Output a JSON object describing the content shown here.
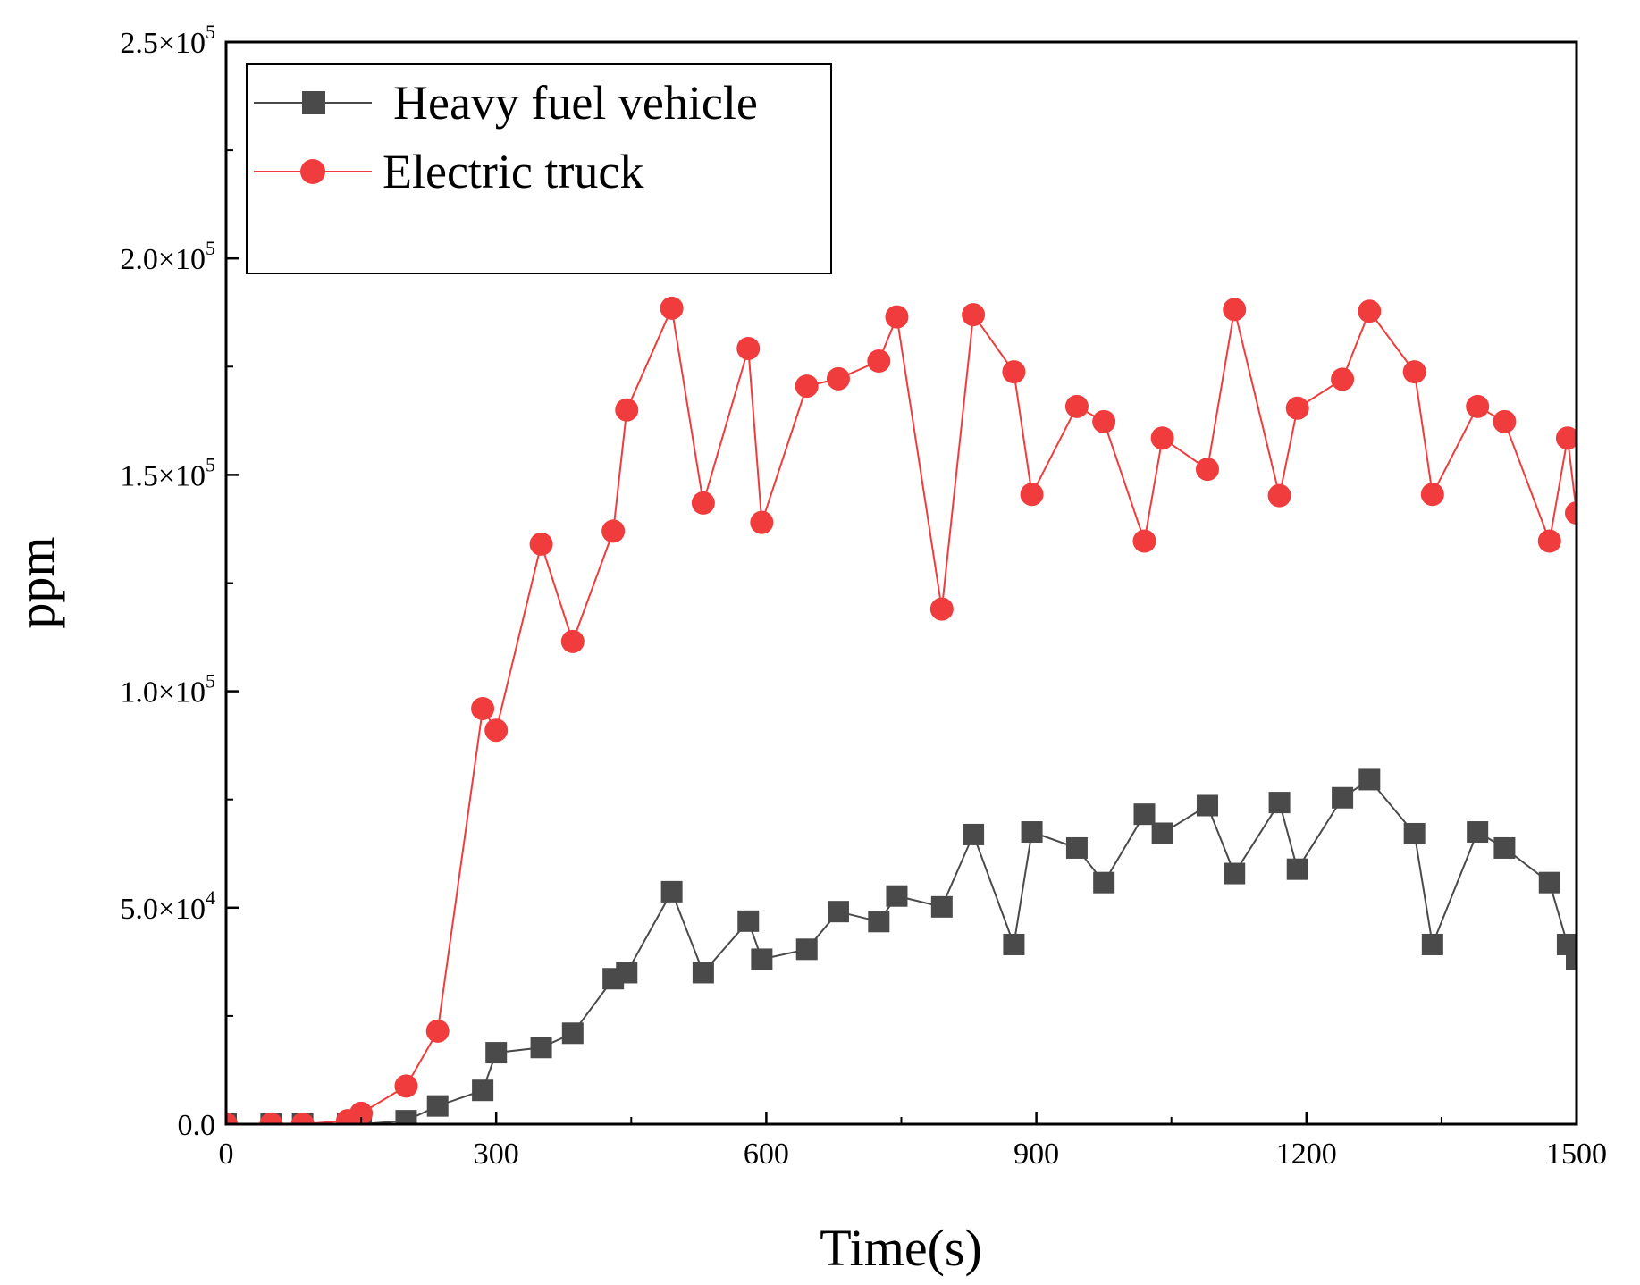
{
  "chart_data": {
    "type": "line",
    "title": "",
    "xlabel": "Time(s)",
    "ylabel": "ppm",
    "xlim": [
      0,
      1500
    ],
    "ylim": [
      0,
      250000
    ],
    "x_ticks": [
      {
        "value": 0,
        "label": "0"
      },
      {
        "value": 300,
        "label": "300"
      },
      {
        "value": 600,
        "label": "600"
      },
      {
        "value": 900,
        "label": "900"
      },
      {
        "value": 1200,
        "label": "1200"
      },
      {
        "value": 1500,
        "label": "1500"
      }
    ],
    "y_ticks": [
      {
        "value": 0,
        "mant": "0.0",
        "exp": ""
      },
      {
        "value": 50000,
        "mant": "5.0×10",
        "exp": "4"
      },
      {
        "value": 100000,
        "mant": "1.0×10",
        "exp": "5"
      },
      {
        "value": 150000,
        "mant": "1.5×10",
        "exp": "5"
      },
      {
        "value": 200000,
        "mant": "2.0×10",
        "exp": "5"
      },
      {
        "value": 250000,
        "mant": "2.5×10",
        "exp": "5"
      }
    ],
    "legend_position": "top-left",
    "series": [
      {
        "name": "Heavy fuel vehicle",
        "color": "#4a4a4a",
        "marker": "square",
        "points": [
          [
            0,
            0
          ],
          [
            50,
            0
          ],
          [
            85,
            0
          ],
          [
            135,
            0
          ],
          [
            150,
            0
          ],
          [
            200,
            800
          ],
          [
            235,
            4200
          ],
          [
            285,
            7800
          ],
          [
            300,
            16500
          ],
          [
            350,
            17700
          ],
          [
            385,
            21000
          ],
          [
            430,
            33600
          ],
          [
            445,
            35000
          ],
          [
            495,
            53700
          ],
          [
            530,
            35000
          ],
          [
            580,
            46900
          ],
          [
            595,
            38100
          ],
          [
            645,
            40400
          ],
          [
            680,
            49100
          ],
          [
            725,
            46800
          ],
          [
            745,
            52700
          ],
          [
            795,
            50200
          ],
          [
            830,
            66900
          ],
          [
            875,
            41500
          ],
          [
            895,
            67500
          ],
          [
            945,
            63800
          ],
          [
            975,
            55800
          ],
          [
            1020,
            71600
          ],
          [
            1040,
            67200
          ],
          [
            1090,
            73600
          ],
          [
            1120,
            57900
          ],
          [
            1170,
            74300
          ],
          [
            1190,
            58900
          ],
          [
            1240,
            75400
          ],
          [
            1270,
            79600
          ],
          [
            1320,
            67100
          ],
          [
            1340,
            41500
          ],
          [
            1390,
            67500
          ],
          [
            1420,
            63800
          ],
          [
            1470,
            55800
          ],
          [
            1490,
            41500
          ],
          [
            1500,
            38100
          ]
        ]
      },
      {
        "name": "Electric truck",
        "color": "#f03c3c",
        "marker": "circle",
        "points": [
          [
            0,
            0
          ],
          [
            50,
            0
          ],
          [
            85,
            0
          ],
          [
            135,
            800
          ],
          [
            150,
            2500
          ],
          [
            200,
            8800
          ],
          [
            235,
            21500
          ],
          [
            285,
            96000
          ],
          [
            300,
            91000
          ],
          [
            350,
            134000
          ],
          [
            385,
            111500
          ],
          [
            430,
            137000
          ],
          [
            445,
            165000
          ],
          [
            495,
            188500
          ],
          [
            530,
            143500
          ],
          [
            580,
            179200
          ],
          [
            595,
            139000
          ],
          [
            645,
            170500
          ],
          [
            680,
            172200
          ],
          [
            725,
            176300
          ],
          [
            745,
            186500
          ],
          [
            795,
            119000
          ],
          [
            830,
            187000
          ],
          [
            875,
            173800
          ],
          [
            895,
            145500
          ],
          [
            945,
            165800
          ],
          [
            975,
            162300
          ],
          [
            1020,
            134700
          ],
          [
            1040,
            158500
          ],
          [
            1090,
            151300
          ],
          [
            1120,
            188200
          ],
          [
            1170,
            145200
          ],
          [
            1190,
            165400
          ],
          [
            1240,
            172100
          ],
          [
            1270,
            187800
          ],
          [
            1320,
            173800
          ],
          [
            1340,
            145500
          ],
          [
            1390,
            165800
          ],
          [
            1420,
            162300
          ],
          [
            1470,
            134700
          ],
          [
            1490,
            158500
          ],
          [
            1500,
            141200
          ]
        ]
      }
    ]
  }
}
